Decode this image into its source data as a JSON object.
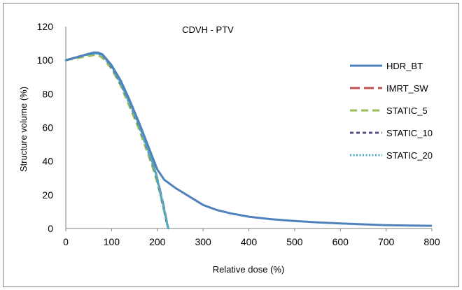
{
  "chart_data": {
    "type": "line",
    "title": "CDVH - PTV",
    "xlabel": "Relative dose (%)",
    "ylabel": "Structure volume (%)",
    "xlim": [
      0,
      800
    ],
    "ylim": [
      0,
      120
    ],
    "xticks": [
      0,
      100,
      200,
      300,
      400,
      500,
      600,
      700,
      800
    ],
    "yticks": [
      0,
      20,
      40,
      60,
      80,
      100,
      120
    ],
    "grid": false,
    "legend_position": "right",
    "series": [
      {
        "name": "HDR_BT",
        "color": "#4f81bd",
        "style": "solid",
        "x": [
          0,
          20,
          40,
          60,
          70,
          80,
          100,
          120,
          140,
          160,
          180,
          200,
          215,
          240,
          270,
          300,
          330,
          360,
          400,
          450,
          500,
          550,
          600,
          650,
          700,
          750,
          800
        ],
        "y": [
          100,
          101.5,
          103,
          104.5,
          104.5,
          103.5,
          97,
          88,
          76,
          63,
          49,
          35,
          29,
          24,
          19,
          14,
          11,
          9,
          7,
          5.5,
          4.5,
          3.6,
          3,
          2.5,
          2,
          1.8,
          1.6
        ]
      },
      {
        "name": "IMRT_SW",
        "color": "#c0504d",
        "style": "long-dash",
        "x": [
          0,
          20,
          40,
          60,
          70,
          80,
          100,
          120,
          140,
          160,
          180,
          195,
          205,
          215,
          220,
          224
        ],
        "y": [
          100,
          101.5,
          103,
          104.5,
          104.5,
          103.5,
          97,
          87,
          75,
          62,
          47,
          35,
          24,
          12,
          5,
          0
        ]
      },
      {
        "name": "STATIC_5",
        "color": "#9bbb59",
        "style": "dash",
        "x": [
          0,
          20,
          40,
          60,
          70,
          80,
          100,
          120,
          140,
          160,
          180,
          195,
          205,
          215,
          220,
          224
        ],
        "y": [
          100,
          101,
          102,
          103,
          103,
          101.5,
          95,
          85,
          72,
          59,
          44,
          32,
          22,
          10,
          4,
          0
        ]
      },
      {
        "name": "STATIC_10",
        "color": "#5f4b8b",
        "style": "short-dash",
        "x": [
          0,
          20,
          40,
          60,
          70,
          80,
          100,
          120,
          140,
          160,
          180,
          195,
          205,
          215,
          220,
          224
        ],
        "y": [
          100,
          101.5,
          103,
          104,
          104,
          103,
          96,
          86,
          74,
          61,
          46,
          34,
          23,
          11,
          4.5,
          0
        ]
      },
      {
        "name": "STATIC_20",
        "color": "#4bacc6",
        "style": "dot",
        "x": [
          0,
          20,
          40,
          60,
          70,
          80,
          100,
          120,
          140,
          160,
          180,
          195,
          205,
          215,
          220,
          224
        ],
        "y": [
          100,
          101.5,
          103,
          104,
          104,
          103,
          96.5,
          86.5,
          74.5,
          61.5,
          46.5,
          34.5,
          23.5,
          11.5,
          5,
          0
        ]
      }
    ]
  }
}
